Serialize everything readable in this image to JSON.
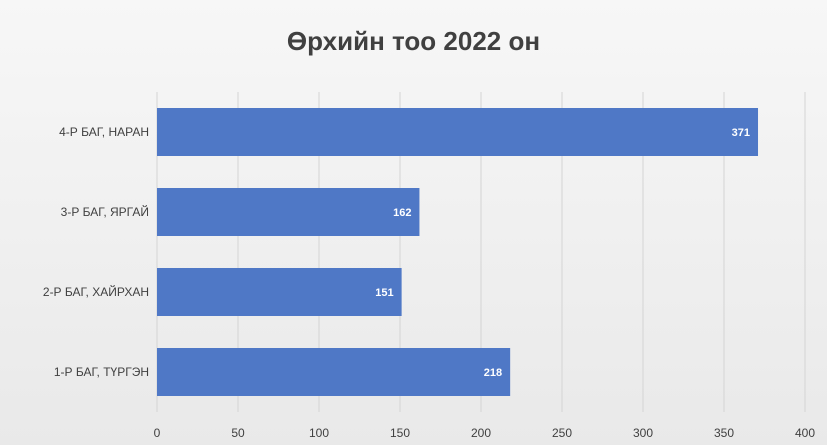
{
  "chart_data": {
    "type": "bar",
    "orientation": "horizontal",
    "title": "Өрхийн тоо 2022 он",
    "categories": [
      "4-Р БАГ, НАРАН",
      "3-Р БАГ, ЯРГАЙ",
      "2-Р БАГ, ХАЙРХАН",
      "1-Р БАГ, ТҮРГЭН"
    ],
    "values": [
      371,
      162,
      151,
      218
    ],
    "data_labels": [
      "371",
      "162",
      "151",
      "218"
    ],
    "xlim": [
      0,
      400
    ],
    "xticks": [
      "0",
      "50",
      "100",
      "150",
      "200",
      "250",
      "300",
      "350",
      "400"
    ],
    "xlabel": "",
    "ylabel": "",
    "grid": "vertical",
    "legend": "none",
    "bar_color": "#4f78c6"
  }
}
